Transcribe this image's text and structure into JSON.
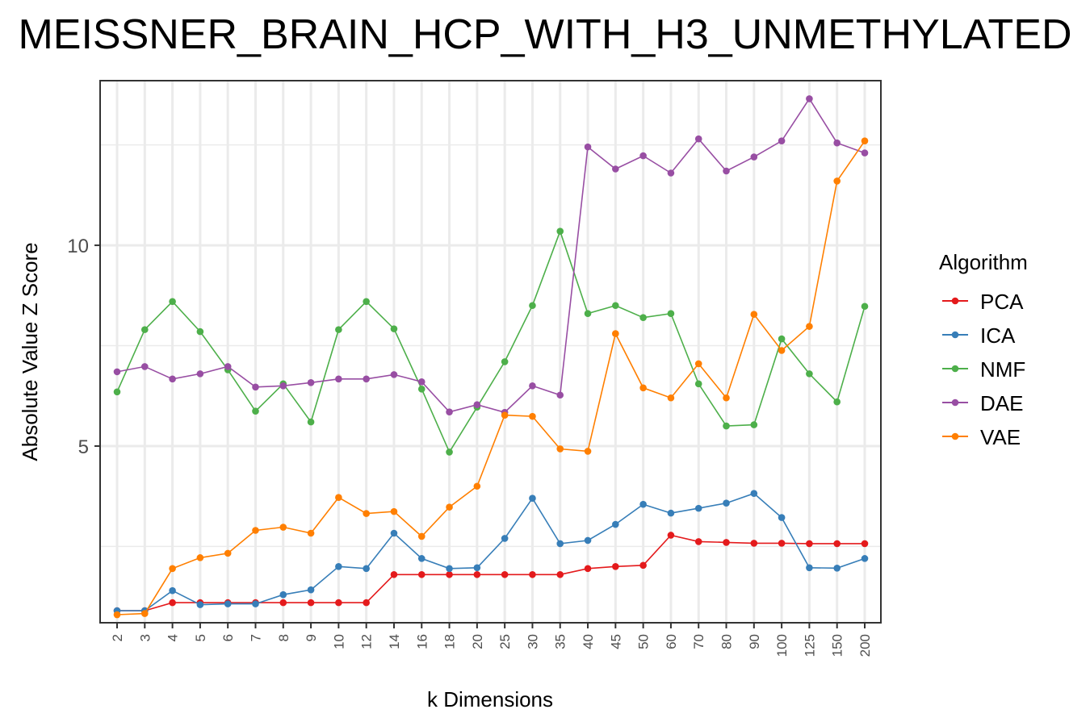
{
  "chart_data": {
    "type": "line",
    "title": "MEISSNER_BRAIN_HCP_WITH_H3_UNMETHYLATED",
    "xlabel": "k Dimensions",
    "ylabel": "Absolute Value Z Score",
    "categories": [
      "2",
      "3",
      "4",
      "5",
      "6",
      "7",
      "8",
      "9",
      "10",
      "12",
      "14",
      "16",
      "18",
      "20",
      "25",
      "30",
      "35",
      "40",
      "45",
      "50",
      "60",
      "70",
      "80",
      "90",
      "100",
      "125",
      "150",
      "200"
    ],
    "y_ticks": [
      5,
      10
    ],
    "ylim": [
      0.6,
      14.1
    ],
    "grid": true,
    "legend": {
      "title": "Algorithm",
      "placement": "right"
    },
    "series": [
      {
        "name": "PCA",
        "color": "#e41a1c",
        "values": [
          0.9,
          0.9,
          1.1,
          1.1,
          1.1,
          1.1,
          1.1,
          1.1,
          1.1,
          1.1,
          1.8,
          1.8,
          1.8,
          1.8,
          1.8,
          1.8,
          1.8,
          1.95,
          2.0,
          2.03,
          2.78,
          2.62,
          2.6,
          2.58,
          2.58,
          2.57,
          2.57,
          2.57
        ]
      },
      {
        "name": "ICA",
        "color": "#377eb8",
        "values": [
          0.9,
          0.9,
          1.4,
          1.05,
          1.07,
          1.07,
          1.3,
          1.42,
          2.0,
          1.95,
          2.83,
          2.2,
          1.95,
          1.97,
          2.7,
          3.7,
          2.57,
          2.65,
          3.05,
          3.55,
          3.33,
          3.45,
          3.58,
          3.82,
          3.22,
          1.97,
          1.96,
          2.2
        ]
      },
      {
        "name": "NMF",
        "color": "#4daf4a",
        "values": [
          6.35,
          7.9,
          8.6,
          7.85,
          6.9,
          5.87,
          6.55,
          5.6,
          7.9,
          8.6,
          7.92,
          6.42,
          4.85,
          5.97,
          7.1,
          8.5,
          10.35,
          8.3,
          8.5,
          8.2,
          8.3,
          6.55,
          5.5,
          5.53,
          7.67,
          6.8,
          6.1,
          8.48
        ]
      },
      {
        "name": "DAE",
        "color": "#984ea3",
        "values": [
          6.85,
          6.98,
          6.67,
          6.8,
          6.98,
          6.47,
          6.5,
          6.58,
          6.67,
          6.67,
          6.78,
          6.6,
          5.85,
          6.03,
          5.84,
          6.5,
          6.27,
          12.45,
          11.9,
          12.23,
          11.8,
          12.65,
          11.85,
          12.2,
          12.6,
          13.65,
          12.55,
          12.3
        ]
      },
      {
        "name": "VAE",
        "color": "#ff7f00",
        "values": [
          0.8,
          0.83,
          1.95,
          2.22,
          2.33,
          2.9,
          2.98,
          2.83,
          3.72,
          3.32,
          3.37,
          2.75,
          3.48,
          4.0,
          5.77,
          5.74,
          4.93,
          4.87,
          7.8,
          6.45,
          6.2,
          7.05,
          6.2,
          8.28,
          7.38,
          7.98,
          11.6,
          12.6
        ]
      }
    ]
  }
}
